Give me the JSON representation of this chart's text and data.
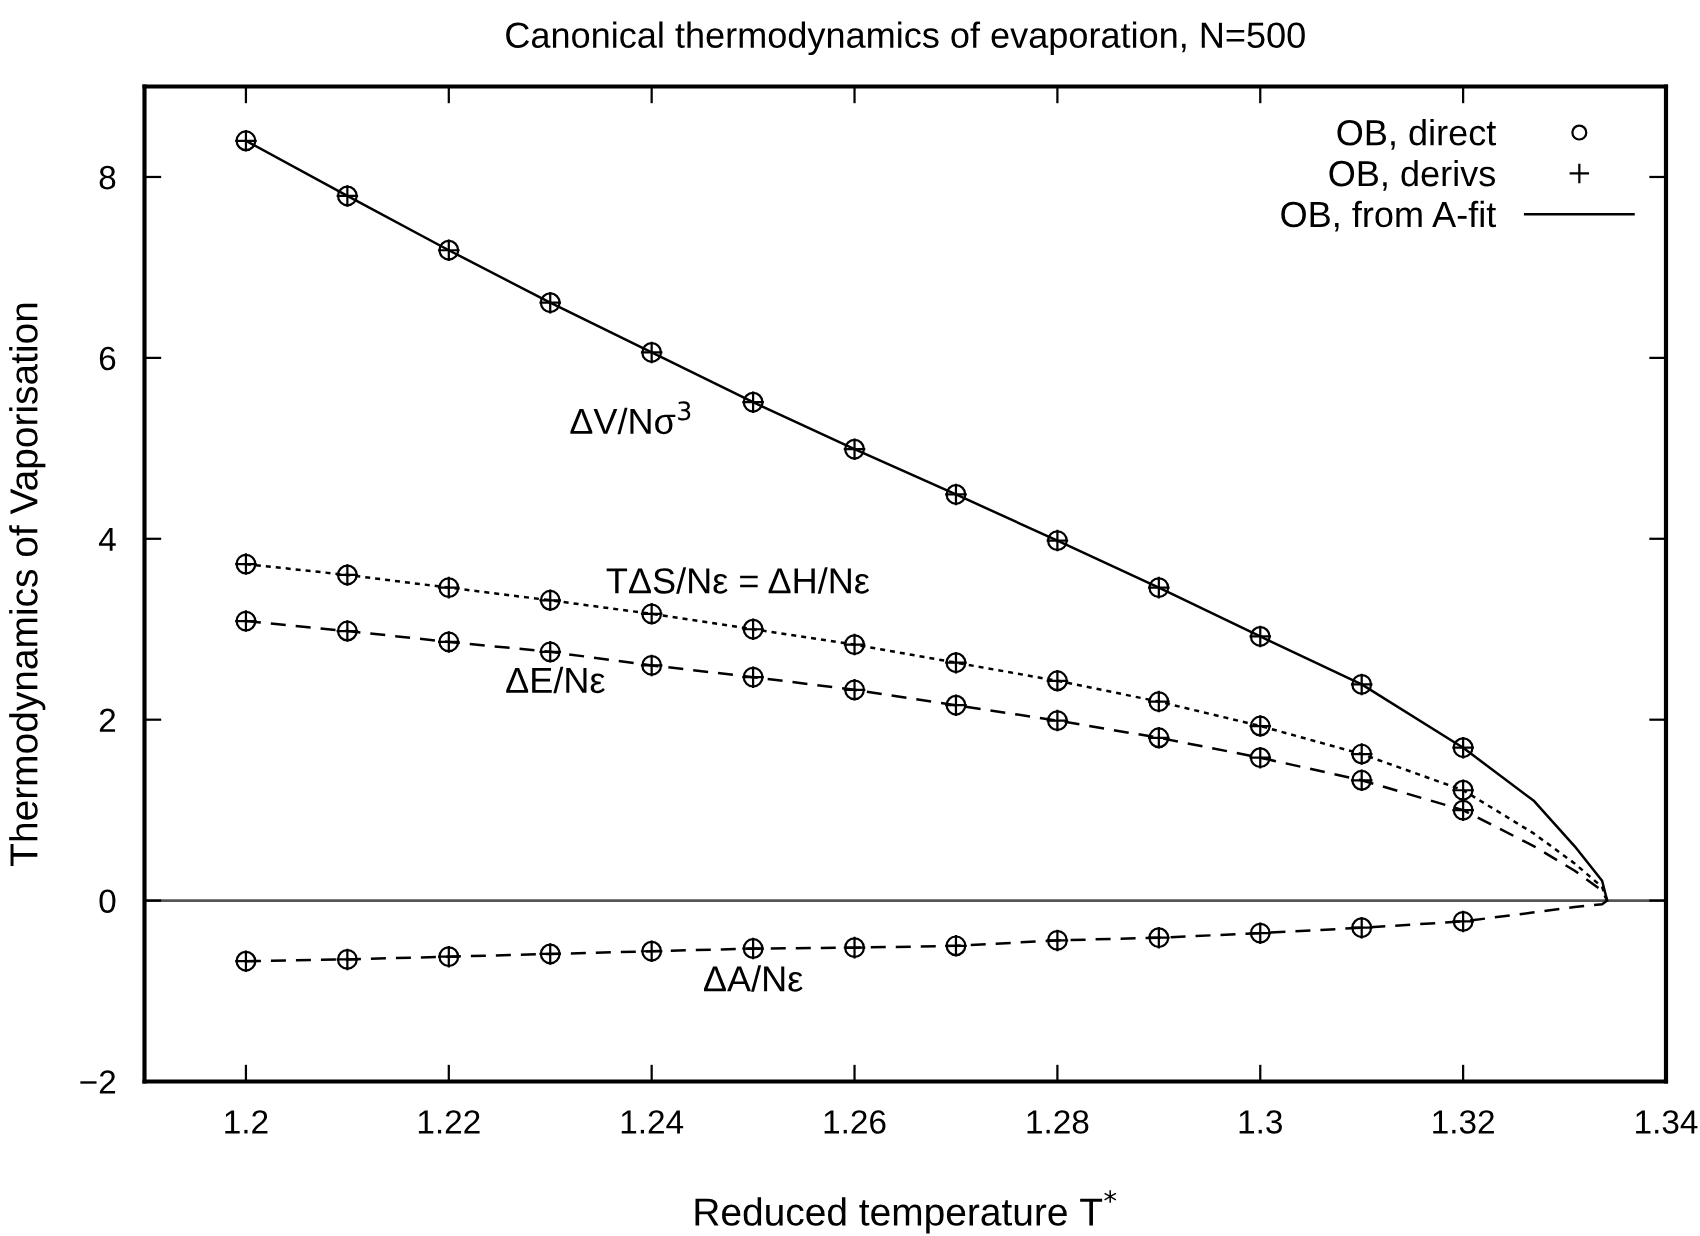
{
  "chart_data": {
    "type": "line",
    "title": "Canonical thermodynamics of evaporation, N=500",
    "xlabel": "Reduced temperature T$^{*}$",
    "ylabel": "Thermodynamics of Vaporisation",
    "xlim": [
      1.19,
      1.34
    ],
    "xticks": [
      1.2,
      1.22,
      1.24,
      1.26,
      1.28,
      1.3,
      1.32,
      1.34
    ],
    "ylim": [
      -2,
      9
    ],
    "yticks": [
      -2,
      0,
      2,
      4,
      6,
      8
    ],
    "grid": false,
    "legend": "top right",
    "series": [
      {
        "name": "OB, from A-fit",
        "line_style": "solid",
        "marker": "none",
        "color": "#000000",
        "x": [
          1.2,
          1.21,
          1.22,
          1.23,
          1.24,
          1.25,
          1.26,
          1.27,
          1.28,
          1.29,
          1.3,
          1.31,
          1.32,
          1.327,
          1.331,
          1.3337,
          1.3342
        ],
        "values": [
          8.4,
          7.79,
          7.19,
          6.61,
          6.06,
          5.51,
          4.99,
          4.49,
          3.98,
          3.46,
          2.92,
          2.39,
          1.69,
          1.1,
          0.6,
          0.22,
          0
        ]
      },
      {
        "line_style": "dotted",
        "marker": "none",
        "color": "#000000",
        "x": [
          1.2,
          1.21,
          1.22,
          1.23,
          1.24,
          1.25,
          1.26,
          1.27,
          1.28,
          1.29,
          1.3,
          1.31,
          1.32,
          1.327,
          1.331,
          1.3337,
          1.3342
        ],
        "values": [
          3.72,
          3.6,
          3.46,
          3.32,
          3.17,
          3.0,
          2.83,
          2.63,
          2.43,
          2.2,
          1.93,
          1.62,
          1.22,
          0.74,
          0.41,
          0.15,
          0
        ]
      },
      {
        "line_style": "dashed",
        "marker": "none",
        "color": "#000000",
        "x": [
          1.2,
          1.21,
          1.22,
          1.23,
          1.24,
          1.25,
          1.26,
          1.27,
          1.28,
          1.29,
          1.3,
          1.31,
          1.32,
          1.327,
          1.331,
          1.3337,
          1.3342
        ],
        "values": [
          3.09,
          2.98,
          2.86,
          2.75,
          2.6,
          2.47,
          2.33,
          2.16,
          1.99,
          1.8,
          1.58,
          1.33,
          1.0,
          0.6,
          0.33,
          0.11,
          0
        ]
      },
      {
        "line_style": "dashed",
        "marker": "none",
        "color": "#000000",
        "x": [
          1.2,
          1.21,
          1.22,
          1.23,
          1.24,
          1.25,
          1.26,
          1.27,
          1.28,
          1.29,
          1.3,
          1.31,
          1.32,
          1.327,
          1.331,
          1.3337,
          1.3342
        ],
        "values": [
          -0.67,
          -0.65,
          -0.62,
          -0.59,
          -0.56,
          -0.53,
          -0.52,
          -0.5,
          -0.44,
          -0.41,
          -0.36,
          -0.3,
          -0.23,
          -0.13,
          -0.07,
          -0.04,
          0
        ]
      },
      {
        "name": "OB, direct",
        "type": "scatter",
        "marker": "circle",
        "color": "#000000",
        "x": [
          1.2,
          1.21,
          1.22,
          1.23,
          1.24,
          1.25,
          1.26,
          1.27,
          1.28,
          1.29,
          1.3,
          1.31,
          1.32,
          1.2,
          1.21,
          1.22,
          1.23,
          1.24,
          1.25,
          1.26,
          1.27,
          1.28,
          1.29,
          1.3,
          1.31,
          1.32,
          1.2,
          1.21,
          1.22,
          1.23,
          1.24,
          1.25,
          1.26,
          1.27,
          1.28,
          1.29,
          1.3,
          1.31,
          1.32,
          1.2,
          1.21,
          1.22,
          1.23,
          1.24,
          1.25,
          1.26,
          1.27,
          1.28,
          1.29,
          1.3,
          1.31,
          1.32
        ],
        "values": [
          8.4,
          7.79,
          7.19,
          6.61,
          6.06,
          5.51,
          4.99,
          4.49,
          3.98,
          3.46,
          2.92,
          2.39,
          1.69,
          3.72,
          3.6,
          3.46,
          3.32,
          3.17,
          3.0,
          2.83,
          2.63,
          2.43,
          2.2,
          1.93,
          1.62,
          1.22,
          3.09,
          2.98,
          2.86,
          2.75,
          2.6,
          2.47,
          2.33,
          2.16,
          1.99,
          1.8,
          1.58,
          1.33,
          1.0,
          -0.67,
          -0.65,
          -0.62,
          -0.59,
          -0.56,
          -0.53,
          -0.52,
          -0.5,
          -0.44,
          -0.41,
          -0.36,
          -0.3,
          -0.23
        ]
      },
      {
        "name": "OB, derivs",
        "type": "scatter",
        "marker": "cross",
        "color": "#000000",
        "x": [
          1.2,
          1.21,
          1.22,
          1.23,
          1.24,
          1.25,
          1.26,
          1.27,
          1.28,
          1.29,
          1.3,
          1.31,
          1.32,
          1.2,
          1.21,
          1.22,
          1.23,
          1.24,
          1.25,
          1.26,
          1.27,
          1.28,
          1.29,
          1.3,
          1.31,
          1.32,
          1.2,
          1.21,
          1.22,
          1.23,
          1.24,
          1.25,
          1.26,
          1.27,
          1.28,
          1.29,
          1.3,
          1.31,
          1.32,
          1.2,
          1.21,
          1.22,
          1.23,
          1.24,
          1.25,
          1.26,
          1.27,
          1.28,
          1.29,
          1.3,
          1.31,
          1.32
        ],
        "values": [
          8.4,
          7.79,
          7.19,
          6.61,
          6.06,
          5.51,
          4.99,
          4.49,
          3.98,
          3.46,
          2.92,
          2.39,
          1.69,
          3.72,
          3.6,
          3.46,
          3.32,
          3.17,
          3.0,
          2.83,
          2.63,
          2.43,
          2.2,
          1.93,
          1.62,
          1.22,
          3.09,
          2.98,
          2.86,
          2.75,
          2.6,
          2.47,
          2.33,
          2.16,
          1.99,
          1.8,
          1.58,
          1.33,
          1.0,
          -0.67,
          -0.65,
          -0.62,
          -0.59,
          -0.56,
          -0.53,
          -0.52,
          -0.5,
          -0.44,
          -0.41,
          -0.36,
          -0.3,
          -0.23
        ]
      }
    ],
    "ref_lines": [
      {
        "axis": "y",
        "value": 0,
        "color": "#555555",
        "line_style": "solid"
      }
    ],
    "annotations": [
      "ΔV/Nσ$^{3}$",
      "TΔS/Nε = ΔH/Nε",
      "ΔE/Nε",
      "ΔA/Nε"
    ]
  }
}
